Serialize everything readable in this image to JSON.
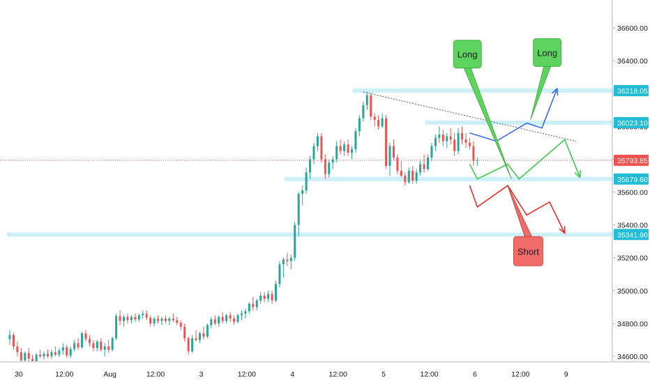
{
  "chart_data": {
    "type": "candlestick",
    "title": "",
    "xlabel": "",
    "ylabel": "",
    "ylim": [
      34560,
      36680
    ],
    "price_axis": {
      "ticks": [
        34600,
        34800,
        35000,
        35200,
        35400,
        35600,
        35800,
        36000,
        36200,
        36400,
        36600
      ],
      "tick_labels": [
        "34600.00",
        "34800.00",
        "35000.00",
        "35200.00",
        "35400.00",
        "35600.00",
        "35800.00",
        "36000.00",
        "36200.00",
        "36400.00",
        "36600.00"
      ]
    },
    "time_axis": {
      "ticks": [
        {
          "label": "30",
          "bar": 2
        },
        {
          "label": "12:00",
          "bar": 14
        },
        {
          "label": "Aug",
          "bar": 26
        },
        {
          "label": "12:00",
          "bar": 38
        },
        {
          "label": "3",
          "bar": 50
        },
        {
          "label": "12:00",
          "bar": 62
        },
        {
          "label": "4",
          "bar": 74
        },
        {
          "label": "12:00",
          "bar": 86
        },
        {
          "label": "5",
          "bar": 98
        },
        {
          "label": "12:00",
          "bar": 110
        },
        {
          "label": "6",
          "bar": 122
        },
        {
          "label": "12:00",
          "bar": 134
        },
        {
          "label": "9",
          "bar": 146
        }
      ]
    },
    "last_price": {
      "value": 35793.85,
      "label": "35793.85",
      "color": "#ef5350"
    },
    "levels": [
      {
        "value": 36218.05,
        "label": "36218.05",
        "from_bar": 91
      },
      {
        "value": 36023.1,
        "label": "36023.10",
        "from_bar": 110
      },
      {
        "value": 35679.6,
        "label": "35679.60",
        "from_bar": 73
      },
      {
        "value": 35341.9,
        "label": "35341.90",
        "from_bar": 0
      }
    ],
    "trendline": {
      "from_bar": 93,
      "from_value": 36210,
      "to_bar": 149,
      "to_value": 35910
    },
    "scenario_paths": [
      {
        "name": "blue",
        "color": "#2962ff",
        "points": [
          [
            121,
            35960
          ],
          [
            128,
            35910
          ],
          [
            136,
            36020
          ],
          [
            140,
            35990
          ],
          [
            144,
            36230
          ]
        ],
        "arrow": true
      },
      {
        "name": "green",
        "color": "#2ecc40",
        "points": [
          [
            121,
            35770
          ],
          [
            123,
            35680
          ],
          [
            131,
            35770
          ],
          [
            134,
            35680
          ],
          [
            146,
            35920
          ],
          [
            150,
            35690
          ]
        ],
        "arrow": true
      },
      {
        "name": "red",
        "color": "#f41f1f",
        "points": [
          [
            121,
            35640
          ],
          [
            123,
            35510
          ],
          [
            131,
            35640
          ],
          [
            136,
            35460
          ],
          [
            142,
            35540
          ],
          [
            146,
            35350
          ]
        ],
        "arrow": true
      }
    ],
    "callouts": [
      {
        "text": "Long",
        "color": "#5fd35f",
        "box_bar": 116,
        "box_value": 36440,
        "tip_bar": 132,
        "tip_value": 35680
      },
      {
        "text": "Long",
        "color": "#5fd35f",
        "box_bar": 137,
        "box_value": 36450,
        "tip_bar": 137,
        "tip_value": 36040
      },
      {
        "text": "Short",
        "color": "#f26b6b",
        "box_bar": 132,
        "box_value": 35240,
        "tip_bar": 131,
        "tip_value": 35640
      }
    ],
    "candles": [
      [
        34705,
        34760,
        34670,
        34730
      ],
      [
        34730,
        34745,
        34640,
        34660
      ],
      [
        34660,
        34690,
        34600,
        34625
      ],
      [
        34625,
        34650,
        34560,
        34575
      ],
      [
        34575,
        34630,
        34560,
        34620
      ],
      [
        34620,
        34650,
        34570,
        34585
      ],
      [
        34585,
        34610,
        34560,
        34570
      ],
      [
        34570,
        34620,
        34560,
        34610
      ],
      [
        34610,
        34640,
        34590,
        34600
      ],
      [
        34600,
        34630,
        34580,
        34615
      ],
      [
        34615,
        34640,
        34590,
        34600
      ],
      [
        34600,
        34640,
        34585,
        34625
      ],
      [
        34625,
        34660,
        34600,
        34610
      ],
      [
        34610,
        34650,
        34595,
        34635
      ],
      [
        34635,
        34680,
        34610,
        34655
      ],
      [
        34655,
        34670,
        34590,
        34605
      ],
      [
        34605,
        34660,
        34590,
        34645
      ],
      [
        34645,
        34700,
        34630,
        34680
      ],
      [
        34680,
        34710,
        34640,
        34655
      ],
      [
        34655,
        34750,
        34645,
        34740
      ],
      [
        34740,
        34760,
        34690,
        34705
      ],
      [
        34705,
        34730,
        34660,
        34680
      ],
      [
        34680,
        34700,
        34630,
        34650
      ],
      [
        34650,
        34700,
        34630,
        34690
      ],
      [
        34690,
        34710,
        34630,
        34640
      ],
      [
        34640,
        34680,
        34600,
        34660
      ],
      [
        34660,
        34700,
        34620,
        34640
      ],
      [
        34640,
        34720,
        34630,
        34710
      ],
      [
        34710,
        34860,
        34700,
        34845
      ],
      [
        34845,
        34880,
        34790,
        34815
      ],
      [
        34815,
        34850,
        34780,
        34840
      ],
      [
        34840,
        34860,
        34800,
        34820
      ],
      [
        34820,
        34850,
        34800,
        34840
      ],
      [
        34840,
        34860,
        34810,
        34825
      ],
      [
        34825,
        34860,
        34810,
        34850
      ],
      [
        34850,
        34880,
        34830,
        34860
      ],
      [
        34860,
        34880,
        34820,
        34835
      ],
      [
        34835,
        34850,
        34780,
        34800
      ],
      [
        34800,
        34840,
        34780,
        34830
      ],
      [
        34830,
        34850,
        34800,
        34815
      ],
      [
        34815,
        34840,
        34790,
        34830
      ],
      [
        34830,
        34850,
        34800,
        34815
      ],
      [
        34815,
        34840,
        34790,
        34830
      ],
      [
        34830,
        34860,
        34810,
        34820
      ],
      [
        34820,
        34840,
        34790,
        34805
      ],
      [
        34805,
        34820,
        34760,
        34780
      ],
      [
        34780,
        34800,
        34690,
        34710
      ],
      [
        34710,
        34720,
        34610,
        34630
      ],
      [
        34630,
        34730,
        34620,
        34710
      ],
      [
        34710,
        34760,
        34690,
        34700
      ],
      [
        34700,
        34750,
        34680,
        34740
      ],
      [
        34740,
        34780,
        34700,
        34720
      ],
      [
        34720,
        34800,
        34710,
        34790
      ],
      [
        34790,
        34840,
        34770,
        34825
      ],
      [
        34825,
        34850,
        34790,
        34800
      ],
      [
        34800,
        34850,
        34780,
        34840
      ],
      [
        34840,
        34870,
        34800,
        34815
      ],
      [
        34815,
        34860,
        34800,
        34850
      ],
      [
        34850,
        34870,
        34810,
        34830
      ],
      [
        34830,
        34850,
        34790,
        34810
      ],
      [
        34810,
        34860,
        34800,
        34850
      ],
      [
        34850,
        34880,
        34820,
        34860
      ],
      [
        34860,
        34890,
        34830,
        34875
      ],
      [
        34875,
        34930,
        34860,
        34920
      ],
      [
        34920,
        34960,
        34880,
        34900
      ],
      [
        34900,
        34950,
        34880,
        34940
      ],
      [
        34940,
        34990,
        34920,
        34970
      ],
      [
        34970,
        34990,
        34930,
        34950
      ],
      [
        34950,
        35000,
        34930,
        34980
      ],
      [
        34980,
        35000,
        34920,
        34940
      ],
      [
        34940,
        35060,
        34930,
        35040
      ],
      [
        35040,
        35180,
        35020,
        35160
      ],
      [
        35160,
        35200,
        35080,
        35190
      ],
      [
        35190,
        35230,
        35150,
        35180
      ],
      [
        35180,
        35220,
        35130,
        35200
      ],
      [
        35200,
        35420,
        35180,
        35400
      ],
      [
        35400,
        35600,
        35330,
        35590
      ],
      [
        35590,
        35640,
        35520,
        35610
      ],
      [
        35610,
        35750,
        35590,
        35720
      ],
      [
        35720,
        35820,
        35680,
        35800
      ],
      [
        35800,
        35900,
        35770,
        35880
      ],
      [
        35880,
        35960,
        35850,
        35940
      ],
      [
        35940,
        35960,
        35780,
        35800
      ],
      [
        35800,
        35830,
        35680,
        35710
      ],
      [
        35710,
        35800,
        35690,
        35780
      ],
      [
        35780,
        35820,
        35740,
        35800
      ],
      [
        35800,
        35910,
        35780,
        35880
      ],
      [
        35880,
        35920,
        35830,
        35850
      ],
      [
        35850,
        35910,
        35820,
        35890
      ],
      [
        35890,
        35920,
        35820,
        35840
      ],
      [
        35840,
        35880,
        35800,
        35860
      ],
      [
        35860,
        35990,
        35840,
        35970
      ],
      [
        35970,
        36070,
        35940,
        36050
      ],
      [
        36050,
        36150,
        36030,
        36130
      ],
      [
        36130,
        36210,
        36100,
        36190
      ],
      [
        36190,
        36200,
        36040,
        36060
      ],
      [
        36060,
        36080,
        36000,
        36040
      ],
      [
        36040,
        36070,
        35980,
        36000
      ],
      [
        36000,
        36080,
        35990,
        36050
      ],
      [
        36050,
        36070,
        35740,
        35760
      ],
      [
        35760,
        35900,
        35700,
        35880
      ],
      [
        35880,
        35920,
        35790,
        35810
      ],
      [
        35810,
        35830,
        35710,
        35730
      ],
      [
        35730,
        35790,
        35690,
        35700
      ],
      [
        35700,
        35720,
        35640,
        35660
      ],
      [
        35660,
        35750,
        35650,
        35730
      ],
      [
        35730,
        35760,
        35650,
        35670
      ],
      [
        35670,
        35740,
        35650,
        35720
      ],
      [
        35720,
        35790,
        35700,
        35770
      ],
      [
        35770,
        35830,
        35720,
        35740
      ],
      [
        35740,
        35830,
        35730,
        35810
      ],
      [
        35810,
        35900,
        35790,
        35880
      ],
      [
        35880,
        35950,
        35850,
        35930
      ],
      [
        35930,
        36000,
        35900,
        35950
      ],
      [
        35950,
        35980,
        35880,
        35910
      ],
      [
        35910,
        35960,
        35870,
        35940
      ],
      [
        35940,
        35990,
        35890,
        35920
      ],
      [
        35920,
        35960,
        35820,
        35850
      ],
      [
        35850,
        35990,
        35830,
        35960
      ],
      [
        35960,
        36000,
        35890,
        35920
      ],
      [
        35920,
        35960,
        35870,
        35900
      ],
      [
        35900,
        35930,
        35860,
        35880
      ],
      [
        35880,
        35910,
        35760,
        35790
      ],
      [
        35790,
        35810,
        35760,
        35794
      ]
    ]
  }
}
